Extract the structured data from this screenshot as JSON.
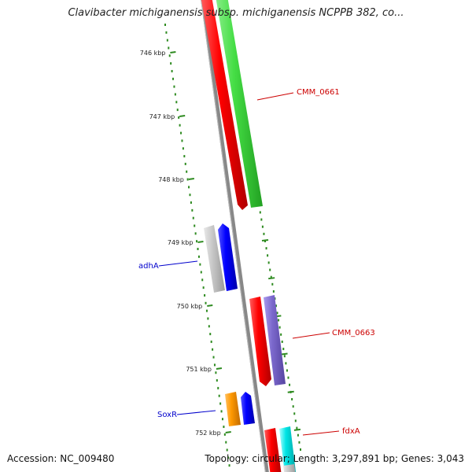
{
  "title": "Clavibacter michiganensis subsp. michiganensis NCPPB 382, co...",
  "ticks": [
    {
      "label": "746 kbp"
    },
    {
      "label": "747 kbp"
    },
    {
      "label": "748 kbp"
    },
    {
      "label": "749 kbp"
    },
    {
      "label": "750 kbp"
    },
    {
      "label": "751 kbp"
    },
    {
      "label": "752 kbp"
    }
  ],
  "features": [
    {
      "name": "CMM_0661",
      "color": "#cc0000"
    },
    {
      "name": "adhA",
      "color": "#0000cc"
    },
    {
      "name": "CMM_0663",
      "color": "#cc0000"
    },
    {
      "name": "SoxR",
      "color": "#0000cc"
    },
    {
      "name": "fdxA",
      "color": "#cc0000"
    }
  ],
  "colors": {
    "backbone": "#888888",
    "tick": "#2e8b20",
    "red": "#ff0000",
    "green": "#44dd44",
    "blue": "#0000ff",
    "gray": "#c8c8c8",
    "purple": "#7b68cc",
    "orange": "#ff9900",
    "cyan": "#00e5e5"
  },
  "footer": {
    "accession": "Accession: NC_009480",
    "summary": "Topology: circular; Length: 3,297,891 bp; Genes: 3,043"
  }
}
